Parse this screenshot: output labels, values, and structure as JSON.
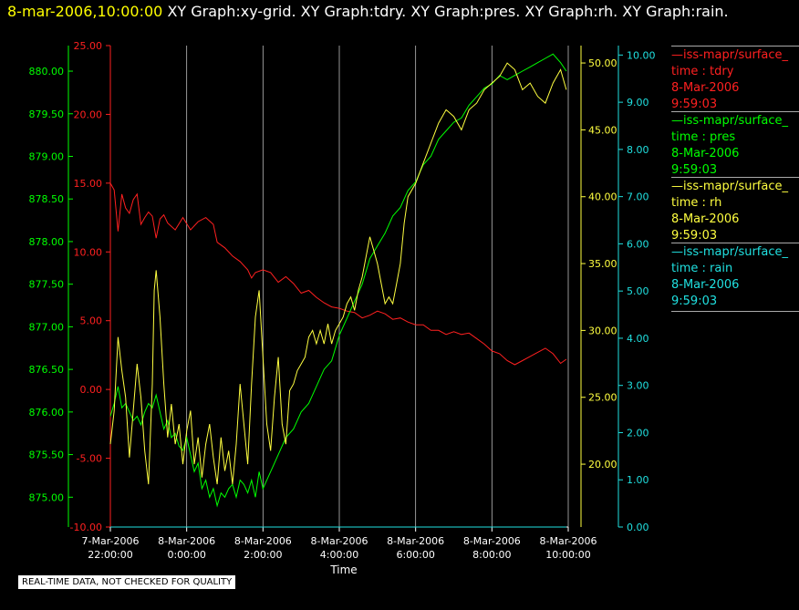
{
  "header": {
    "timestamp": "8-mar-2006,10:00:00",
    "graphs": [
      "XY Graph:xy-grid.",
      "XY Graph:tdry.",
      "XY Graph:pres.",
      "XY Graph:rh.",
      "XY Graph:rain."
    ]
  },
  "disclaimer": "REAL-TIME DATA, NOT CHECKED FOR QUALITY",
  "legend": [
    {
      "source": "—iss-mapr/surface_",
      "label": "time : tdry",
      "date": "8-Mar-2006",
      "time": "9:59:03",
      "color": "#ff2020"
    },
    {
      "source": "—iss-mapr/surface_",
      "label": "time : pres",
      "date": "8-Mar-2006",
      "time": "9:59:03",
      "color": "#00ff00"
    },
    {
      "source": "—iss-mapr/surface_",
      "label": "time : rh",
      "date": "8-Mar-2006",
      "time": "9:59:03",
      "color": "#ffff40"
    },
    {
      "source": "—iss-mapr/surface_",
      "label": "time : rain",
      "date": "8-Mar-2006",
      "time": "9:59:03",
      "color": "#20e0e0"
    }
  ],
  "chart_data": {
    "type": "line",
    "xlabel": "Time",
    "x_ticks": [
      {
        "t": -2,
        "date": "7-Mar-2006",
        "time": "22:00:00"
      },
      {
        "t": 0,
        "date": "8-Mar-2006",
        "time": "0:00:00"
      },
      {
        "t": 2,
        "date": "8-Mar-2006",
        "time": "2:00:00"
      },
      {
        "t": 4,
        "date": "8-Mar-2006",
        "time": "4:00:00"
      },
      {
        "t": 6,
        "date": "8-Mar-2006",
        "time": "6:00:00"
      },
      {
        "t": 8,
        "date": "8-Mar-2006",
        "time": "8:00:00"
      },
      {
        "t": 10,
        "date": "8-Mar-2006",
        "time": "10:00:00"
      }
    ],
    "xlim": [
      -2,
      10
    ],
    "grid": "vertical",
    "axes": {
      "tdry": {
        "color": "#ff2020",
        "range": [
          -10,
          25
        ],
        "ticks": [
          "-10.00",
          "-5.00",
          "0.00",
          "5.00",
          "10.00",
          "15.00",
          "20.00",
          "25.00"
        ]
      },
      "pres": {
        "color": "#00ff00",
        "range": [
          874.65,
          880.3
        ],
        "ticks": [
          "875.00",
          "875.50",
          "876.00",
          "876.50",
          "877.00",
          "877.50",
          "878.00",
          "878.50",
          "879.00",
          "879.50",
          "880.00"
        ]
      },
      "rh": {
        "color": "#ffff40",
        "range": [
          15.3,
          51.3
        ],
        "ticks": [
          "20.00",
          "25.00",
          "30.00",
          "35.00",
          "40.00",
          "45.00",
          "50.00"
        ]
      },
      "rain": {
        "color": "#20e0e0",
        "range": [
          0,
          10.2
        ],
        "ticks": [
          "0.00",
          "1.00",
          "2.00",
          "3.00",
          "4.00",
          "5.00",
          "6.00",
          "7.00",
          "8.00",
          "9.00",
          "10.00"
        ]
      }
    },
    "series": [
      {
        "name": "time : tdry",
        "axis": "tdry",
        "color": "#ff2020",
        "points": [
          [
            -2.0,
            15.0
          ],
          [
            -1.9,
            14.5
          ],
          [
            -1.8,
            11.5
          ],
          [
            -1.7,
            14.2
          ],
          [
            -1.6,
            13.2
          ],
          [
            -1.5,
            12.8
          ],
          [
            -1.4,
            13.8
          ],
          [
            -1.3,
            14.2
          ],
          [
            -1.2,
            12.0
          ],
          [
            -1.1,
            12.5
          ],
          [
            -1.0,
            12.9
          ],
          [
            -0.9,
            12.6
          ],
          [
            -0.8,
            11.0
          ],
          [
            -0.7,
            12.4
          ],
          [
            -0.6,
            12.7
          ],
          [
            -0.5,
            12.1
          ],
          [
            -0.3,
            11.6
          ],
          [
            -0.1,
            12.5
          ],
          [
            0.1,
            11.6
          ],
          [
            0.3,
            12.2
          ],
          [
            0.5,
            12.5
          ],
          [
            0.7,
            12.0
          ],
          [
            0.8,
            10.7
          ],
          [
            1.0,
            10.3
          ],
          [
            1.2,
            9.7
          ],
          [
            1.4,
            9.3
          ],
          [
            1.6,
            8.7
          ],
          [
            1.7,
            8.1
          ],
          [
            1.8,
            8.5
          ],
          [
            2.0,
            8.7
          ],
          [
            2.2,
            8.5
          ],
          [
            2.4,
            7.8
          ],
          [
            2.6,
            8.2
          ],
          [
            2.8,
            7.7
          ],
          [
            3.0,
            7.0
          ],
          [
            3.2,
            7.2
          ],
          [
            3.4,
            6.7
          ],
          [
            3.6,
            6.3
          ],
          [
            3.8,
            6.0
          ],
          [
            4.0,
            5.9
          ],
          [
            4.2,
            5.7
          ],
          [
            4.4,
            5.6
          ],
          [
            4.6,
            5.2
          ],
          [
            4.8,
            5.4
          ],
          [
            5.0,
            5.7
          ],
          [
            5.2,
            5.5
          ],
          [
            5.4,
            5.1
          ],
          [
            5.6,
            5.2
          ],
          [
            5.8,
            4.9
          ],
          [
            6.0,
            4.7
          ],
          [
            6.2,
            4.7
          ],
          [
            6.4,
            4.3
          ],
          [
            6.6,
            4.3
          ],
          [
            6.8,
            4.0
          ],
          [
            7.0,
            4.2
          ],
          [
            7.2,
            4.0
          ],
          [
            7.4,
            4.1
          ],
          [
            7.6,
            3.7
          ],
          [
            7.8,
            3.3
          ],
          [
            8.0,
            2.8
          ],
          [
            8.2,
            2.6
          ],
          [
            8.4,
            2.1
          ],
          [
            8.6,
            1.8
          ],
          [
            8.8,
            2.1
          ],
          [
            9.0,
            2.4
          ],
          [
            9.2,
            2.7
          ],
          [
            9.4,
            3.0
          ],
          [
            9.6,
            2.6
          ],
          [
            9.8,
            1.9
          ],
          [
            9.95,
            2.2
          ]
        ]
      },
      {
        "name": "time : pres",
        "axis": "pres",
        "color": "#00ff00",
        "points": [
          [
            -2.0,
            875.95
          ],
          [
            -1.9,
            876.1
          ],
          [
            -1.8,
            876.3
          ],
          [
            -1.7,
            876.05
          ],
          [
            -1.6,
            876.1
          ],
          [
            -1.5,
            876.0
          ],
          [
            -1.4,
            875.9
          ],
          [
            -1.3,
            875.95
          ],
          [
            -1.2,
            875.85
          ],
          [
            -1.1,
            876.0
          ],
          [
            -1.0,
            876.1
          ],
          [
            -0.9,
            876.05
          ],
          [
            -0.8,
            876.2
          ],
          [
            -0.7,
            876.0
          ],
          [
            -0.6,
            875.8
          ],
          [
            -0.5,
            875.9
          ],
          [
            -0.4,
            875.7
          ],
          [
            -0.3,
            875.75
          ],
          [
            -0.2,
            875.6
          ],
          [
            -0.1,
            875.55
          ],
          [
            0.0,
            875.7
          ],
          [
            0.1,
            875.5
          ],
          [
            0.2,
            875.3
          ],
          [
            0.3,
            875.4
          ],
          [
            0.4,
            875.1
          ],
          [
            0.5,
            875.2
          ],
          [
            0.6,
            875.0
          ],
          [
            0.7,
            875.1
          ],
          [
            0.8,
            874.9
          ],
          [
            0.9,
            875.05
          ],
          [
            1.0,
            875.0
          ],
          [
            1.1,
            875.1
          ],
          [
            1.2,
            875.15
          ],
          [
            1.3,
            875.0
          ],
          [
            1.4,
            875.2
          ],
          [
            1.5,
            875.15
          ],
          [
            1.6,
            875.05
          ],
          [
            1.7,
            875.2
          ],
          [
            1.8,
            875.0
          ],
          [
            1.9,
            875.3
          ],
          [
            2.0,
            875.1
          ],
          [
            2.2,
            875.3
          ],
          [
            2.4,
            875.5
          ],
          [
            2.6,
            875.7
          ],
          [
            2.8,
            875.8
          ],
          [
            3.0,
            876.0
          ],
          [
            3.2,
            876.1
          ],
          [
            3.4,
            876.3
          ],
          [
            3.6,
            876.5
          ],
          [
            3.8,
            876.6
          ],
          [
            4.0,
            876.9
          ],
          [
            4.2,
            877.1
          ],
          [
            4.4,
            877.3
          ],
          [
            4.6,
            877.5
          ],
          [
            4.8,
            877.8
          ],
          [
            5.0,
            877.95
          ],
          [
            5.2,
            878.1
          ],
          [
            5.4,
            878.3
          ],
          [
            5.6,
            878.4
          ],
          [
            5.8,
            878.6
          ],
          [
            6.0,
            878.7
          ],
          [
            6.2,
            878.9
          ],
          [
            6.4,
            879.0
          ],
          [
            6.6,
            879.2
          ],
          [
            6.8,
            879.3
          ],
          [
            7.0,
            879.4
          ],
          [
            7.2,
            879.45
          ],
          [
            7.4,
            879.6
          ],
          [
            7.6,
            879.7
          ],
          [
            7.8,
            879.8
          ],
          [
            8.0,
            879.85
          ],
          [
            8.2,
            879.95
          ],
          [
            8.4,
            879.9
          ],
          [
            8.6,
            879.95
          ],
          [
            8.8,
            880.0
          ],
          [
            9.0,
            880.05
          ],
          [
            9.2,
            880.1
          ],
          [
            9.4,
            880.15
          ],
          [
            9.6,
            880.2
          ],
          [
            9.8,
            880.1
          ],
          [
            9.95,
            880.0
          ]
        ]
      },
      {
        "name": "time : rh",
        "axis": "rh",
        "color": "#ffff40",
        "points": [
          [
            -2.0,
            21.5
          ],
          [
            -1.9,
            24.0
          ],
          [
            -1.8,
            29.5
          ],
          [
            -1.7,
            27.0
          ],
          [
            -1.6,
            25.0
          ],
          [
            -1.5,
            20.5
          ],
          [
            -1.4,
            24.0
          ],
          [
            -1.3,
            27.5
          ],
          [
            -1.2,
            25.0
          ],
          [
            -1.1,
            21.0
          ],
          [
            -1.0,
            18.5
          ],
          [
            -0.9,
            26.0
          ],
          [
            -0.85,
            33.0
          ],
          [
            -0.8,
            34.5
          ],
          [
            -0.7,
            31.0
          ],
          [
            -0.6,
            26.0
          ],
          [
            -0.5,
            22.0
          ],
          [
            -0.4,
            24.5
          ],
          [
            -0.3,
            21.5
          ],
          [
            -0.2,
            23.0
          ],
          [
            -0.1,
            20.0
          ],
          [
            0.0,
            22.5
          ],
          [
            0.1,
            24.0
          ],
          [
            0.2,
            20.0
          ],
          [
            0.3,
            22.0
          ],
          [
            0.4,
            19.0
          ],
          [
            0.5,
            21.5
          ],
          [
            0.6,
            23.0
          ],
          [
            0.7,
            20.5
          ],
          [
            0.8,
            18.5
          ],
          [
            0.9,
            22.0
          ],
          [
            1.0,
            19.5
          ],
          [
            1.1,
            21.0
          ],
          [
            1.2,
            18.5
          ],
          [
            1.3,
            21.5
          ],
          [
            1.4,
            26.0
          ],
          [
            1.5,
            23.0
          ],
          [
            1.6,
            20.0
          ],
          [
            1.7,
            26.0
          ],
          [
            1.8,
            31.0
          ],
          [
            1.9,
            33.0
          ],
          [
            2.0,
            28.0
          ],
          [
            2.1,
            23.0
          ],
          [
            2.2,
            21.0
          ],
          [
            2.3,
            25.0
          ],
          [
            2.4,
            28.0
          ],
          [
            2.5,
            23.0
          ],
          [
            2.6,
            21.5
          ],
          [
            2.7,
            25.5
          ],
          [
            2.8,
            26.0
          ],
          [
            2.9,
            27.0
          ],
          [
            3.0,
            27.5
          ],
          [
            3.1,
            28.0
          ],
          [
            3.2,
            29.5
          ],
          [
            3.3,
            30.0
          ],
          [
            3.4,
            29.0
          ],
          [
            3.5,
            30.0
          ],
          [
            3.6,
            29.0
          ],
          [
            3.7,
            30.5
          ],
          [
            3.8,
            29.0
          ],
          [
            3.9,
            30.0
          ],
          [
            4.0,
            30.5
          ],
          [
            4.1,
            31.0
          ],
          [
            4.2,
            32.0
          ],
          [
            4.3,
            32.5
          ],
          [
            4.4,
            31.5
          ],
          [
            4.5,
            33.0
          ],
          [
            4.6,
            34.0
          ],
          [
            4.7,
            35.5
          ],
          [
            4.8,
            37.0
          ],
          [
            4.9,
            36.0
          ],
          [
            5.0,
            35.0
          ],
          [
            5.1,
            33.5
          ],
          [
            5.2,
            32.0
          ],
          [
            5.3,
            32.5
          ],
          [
            5.4,
            32.0
          ],
          [
            5.5,
            33.5
          ],
          [
            5.6,
            35.0
          ],
          [
            5.7,
            38.0
          ],
          [
            5.8,
            40.0
          ],
          [
            6.0,
            41.0
          ],
          [
            6.2,
            42.5
          ],
          [
            6.4,
            44.0
          ],
          [
            6.6,
            45.5
          ],
          [
            6.8,
            46.5
          ],
          [
            7.0,
            46.0
          ],
          [
            7.2,
            45.0
          ],
          [
            7.4,
            46.5
          ],
          [
            7.6,
            47.0
          ],
          [
            7.8,
            48.0
          ],
          [
            8.0,
            48.5
          ],
          [
            8.2,
            49.0
          ],
          [
            8.4,
            50.0
          ],
          [
            8.6,
            49.5
          ],
          [
            8.8,
            48.0
          ],
          [
            9.0,
            48.5
          ],
          [
            9.2,
            47.5
          ],
          [
            9.4,
            47.0
          ],
          [
            9.6,
            48.5
          ],
          [
            9.8,
            49.5
          ],
          [
            9.9,
            48.5
          ],
          [
            9.95,
            48.0
          ]
        ]
      },
      {
        "name": "time : rain",
        "axis": "rain",
        "color": "#20e0e0",
        "points": [
          [
            -2.0,
            0.0
          ],
          [
            9.95,
            0.0
          ]
        ]
      }
    ]
  }
}
